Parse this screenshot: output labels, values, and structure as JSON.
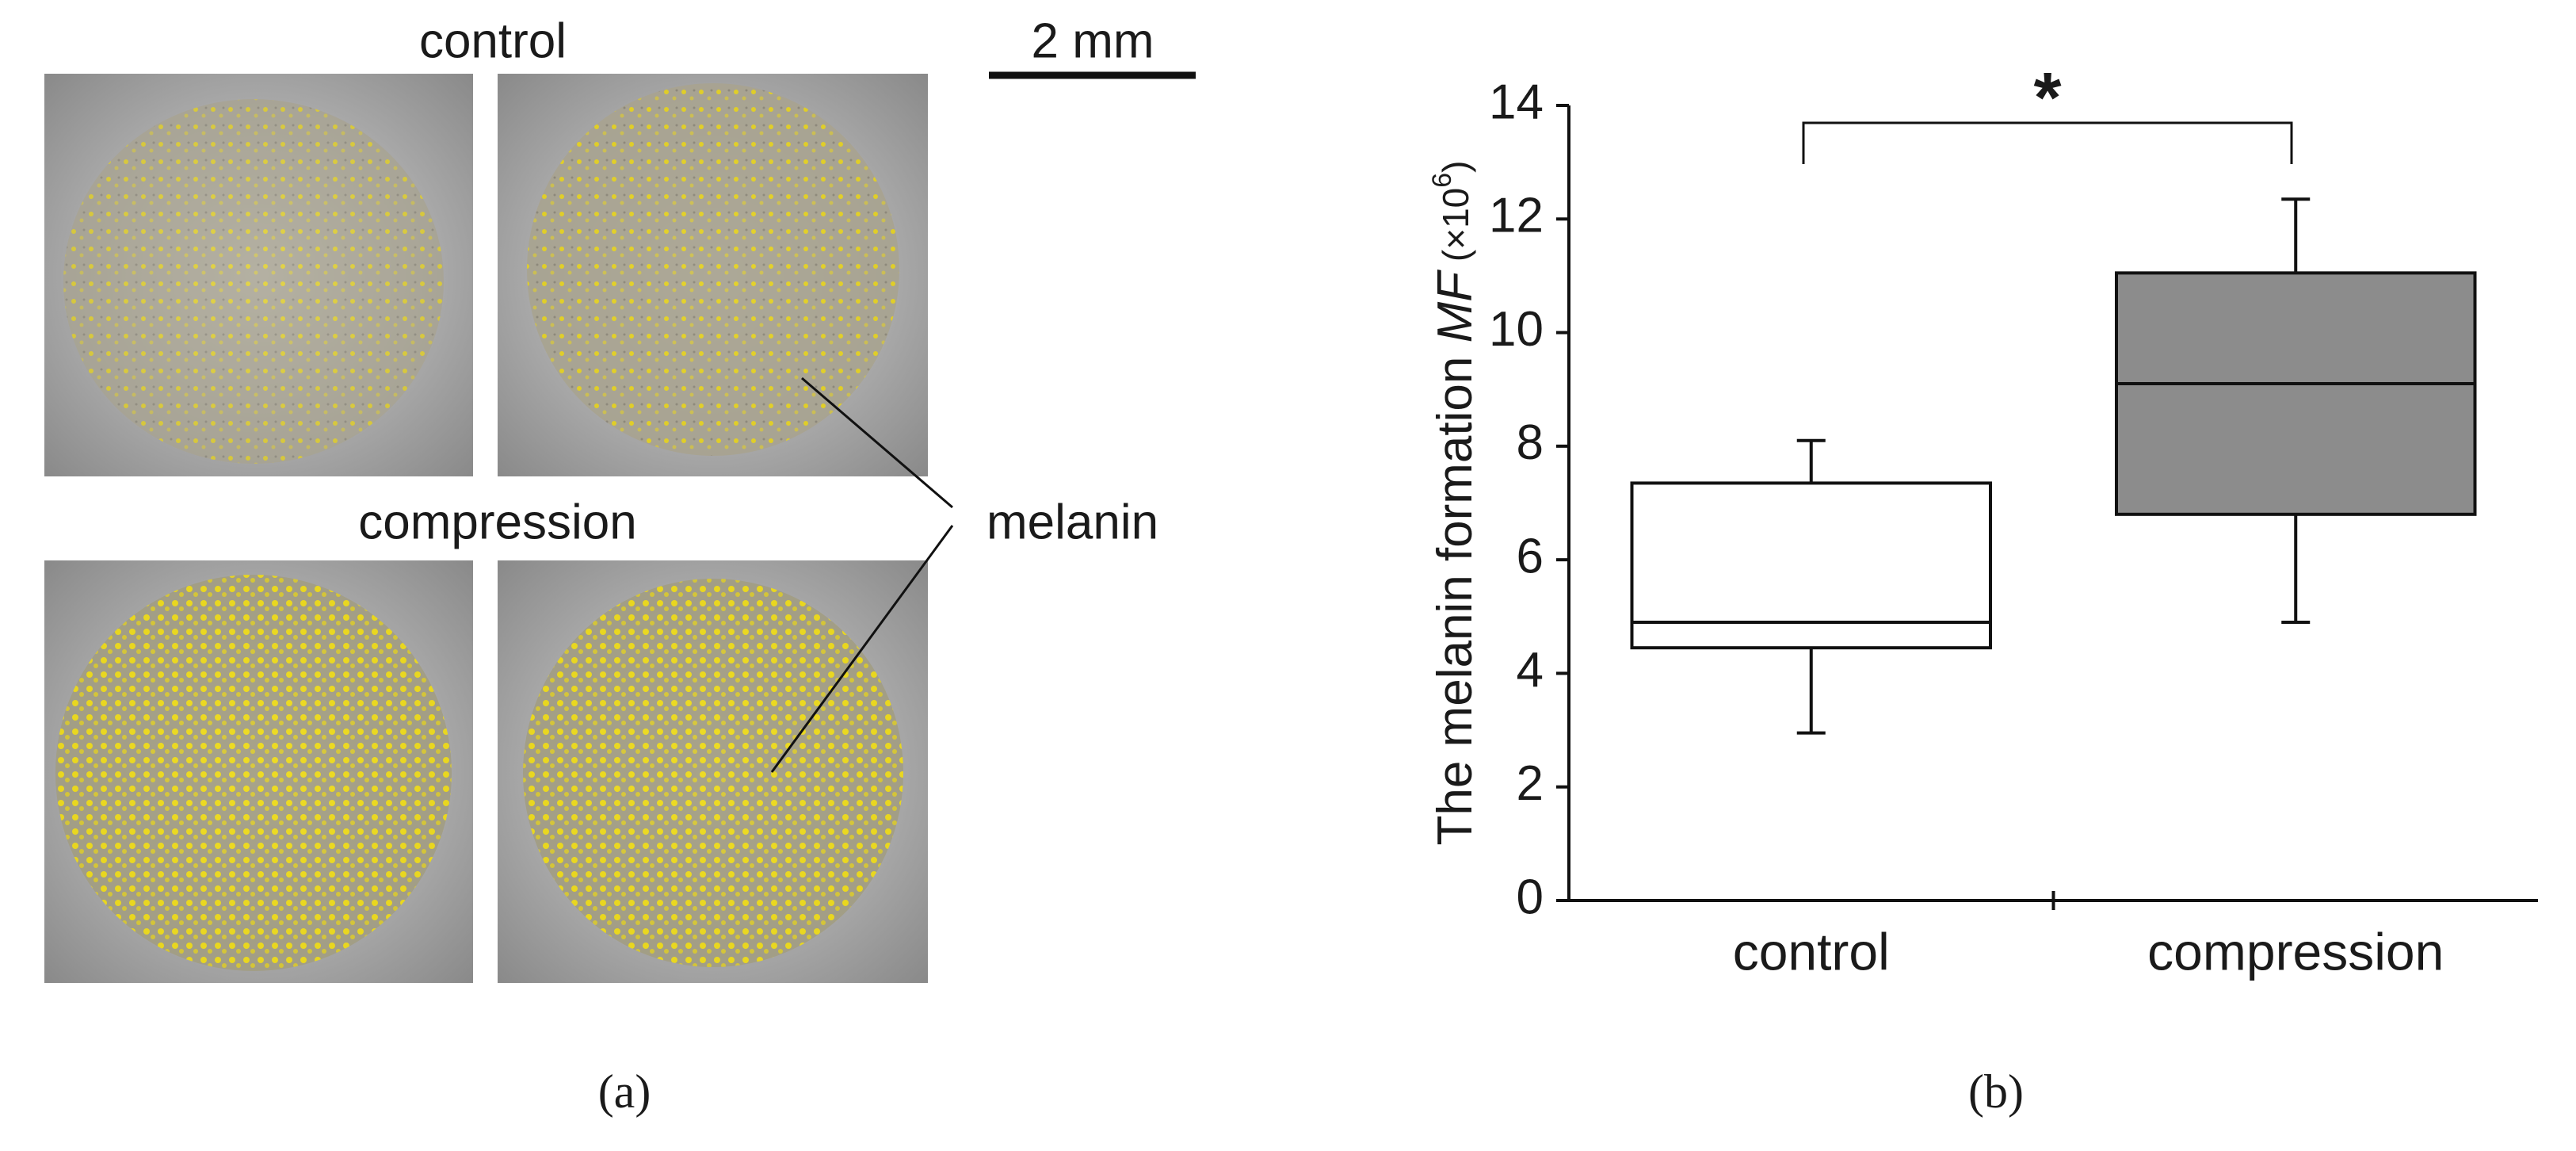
{
  "panel_a": {
    "top_label": "control",
    "scale_bar": "2 mm",
    "bottom_label": "compression",
    "annotation": "melanin",
    "caption": "(a)"
  },
  "chart_data": {
    "type": "box",
    "ylabel_parts": [
      "The melanin formation ",
      "MF",
      " (×10",
      "6",
      ")"
    ],
    "categories": [
      "control",
      "compression"
    ],
    "boxes": [
      {
        "min": 2.95,
        "q1": 4.45,
        "median": 4.9,
        "q3": 7.35,
        "max": 8.1,
        "color": "#ffffff"
      },
      {
        "min": 4.9,
        "q1": 6.8,
        "median": 9.1,
        "q3": 11.05,
        "max": 12.35,
        "color": "#8c8c8c"
      }
    ],
    "ylim": [
      0,
      14
    ],
    "yticks": [
      0,
      2,
      4,
      6,
      8,
      10,
      12,
      14
    ],
    "significance": "*"
  },
  "caption_b": "(b)"
}
